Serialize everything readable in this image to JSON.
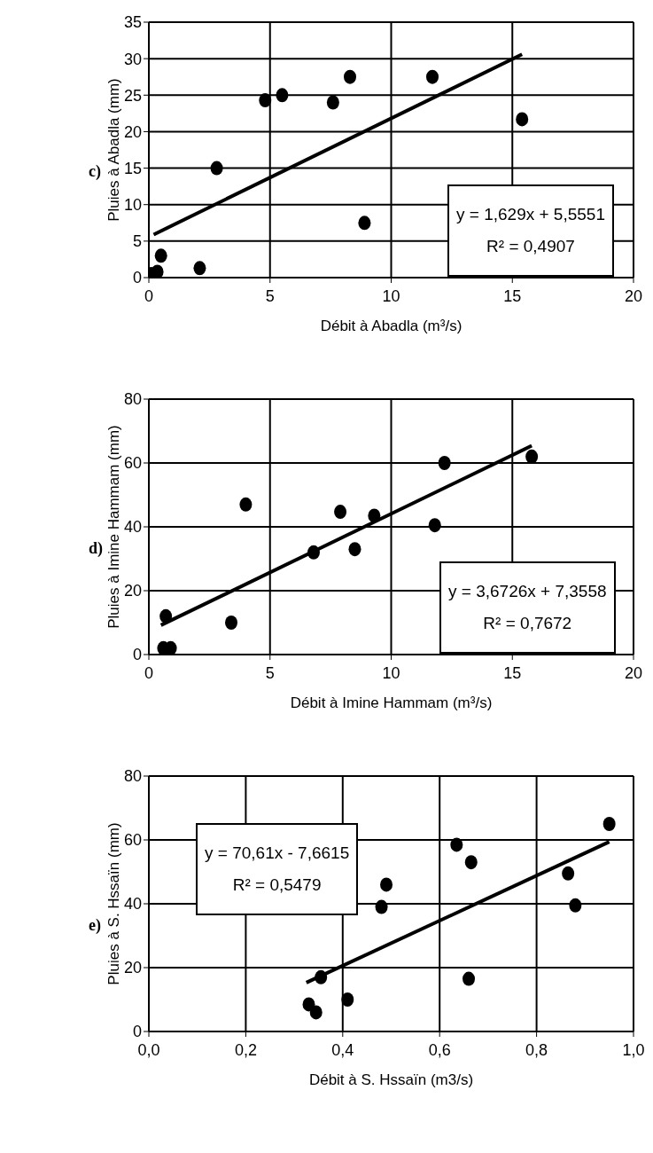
{
  "chart_data": [
    {
      "type": "scatter",
      "title": "c)",
      "xlabel": "Débit à Abadla (m³/s)",
      "ylabel": "Pluies à Abadla (mm)",
      "xlim": [
        0,
        20
      ],
      "xticks": [
        0,
        5,
        10,
        15,
        20
      ],
      "ylim": [
        0,
        35
      ],
      "yticks": [
        0,
        5,
        10,
        15,
        20,
        25,
        30,
        35
      ],
      "grid": true,
      "marker": "circle",
      "annotations": [
        "y = 1,629x + 5,5551",
        "R² = 0,4907"
      ],
      "series": [
        {
          "color": "#000000",
          "x": [
            0.1,
            0.35,
            0.5,
            2.1,
            2.8,
            4.8,
            5.5,
            7.6,
            8.3,
            8.9,
            11.7,
            15.4
          ],
          "values": [
            0.5,
            0.8,
            3,
            1.3,
            15,
            24.3,
            25,
            24,
            27.5,
            7.5,
            27.5,
            21.7
          ]
        },
        {
          "type": "line",
          "marker": "none",
          "line_style": "solid",
          "color": "#000000",
          "x": [
            0.2,
            15.4
          ],
          "values": [
            5.9,
            30.6
          ]
        }
      ]
    },
    {
      "type": "scatter",
      "title": "d)",
      "xlabel": "Débit à Imine Hammam (m³/s)",
      "ylabel": "Pluies à Imine Hammam (mm)",
      "xlim": [
        0,
        20
      ],
      "xticks": [
        0,
        5,
        10,
        15,
        20
      ],
      "ylim": [
        0,
        80
      ],
      "yticks": [
        0,
        20,
        40,
        60,
        80
      ],
      "grid": true,
      "marker": "circle",
      "annotations": [
        "y = 3,6726x + 7,3558",
        "R² = 0,7672"
      ],
      "series": [
        {
          "color": "#000000",
          "x": [
            0.6,
            0.9,
            0.7,
            3.4,
            4.0,
            6.8,
            7.9,
            8.5,
            9.3,
            11.8,
            12.2,
            15.8
          ],
          "values": [
            2,
            2,
            12,
            10,
            47,
            32,
            44.7,
            33,
            43.5,
            40.5,
            60,
            62
          ]
        },
        {
          "type": "line",
          "marker": "none",
          "line_style": "solid",
          "color": "#000000",
          "x": [
            0.5,
            15.8
          ],
          "values": [
            9.2,
            65.4
          ]
        }
      ]
    },
    {
      "type": "scatter",
      "title": "e)",
      "xlabel": "Débit à S. Hssaïn (m3/s)",
      "ylabel": "Pluies à S. Hssaïn (mm)",
      "xlim": [
        0,
        1
      ],
      "xticks": [
        {
          "value": 0,
          "label": "0,0"
        },
        {
          "value": 0.2,
          "label": "0,2"
        },
        {
          "value": 0.4,
          "label": "0,4"
        },
        {
          "value": 0.6,
          "label": "0,6"
        },
        {
          "value": 0.8,
          "label": "0,8"
        },
        {
          "value": 1,
          "label": "1,0"
        }
      ],
      "ylim": [
        0,
        80
      ],
      "yticks": [
        0,
        20,
        40,
        60,
        80
      ],
      "grid": true,
      "marker": "circle",
      "annotations": [
        "y = 70,61x - 7,6615",
        "R² = 0,5479"
      ],
      "series": [
        {
          "color": "#000000",
          "x": [
            0.33,
            0.345,
            0.355,
            0.41,
            0.48,
            0.49,
            0.635,
            0.665,
            0.66,
            0.865,
            0.88,
            0.95
          ],
          "values": [
            8.5,
            6,
            17,
            10,
            39,
            46,
            58.5,
            53,
            16.5,
            49.5,
            39.5,
            65
          ]
        },
        {
          "type": "line",
          "marker": "none",
          "line_style": "solid",
          "color": "#000000",
          "x": [
            0.325,
            0.95
          ],
          "values": [
            15.3,
            59.4
          ]
        }
      ]
    }
  ]
}
